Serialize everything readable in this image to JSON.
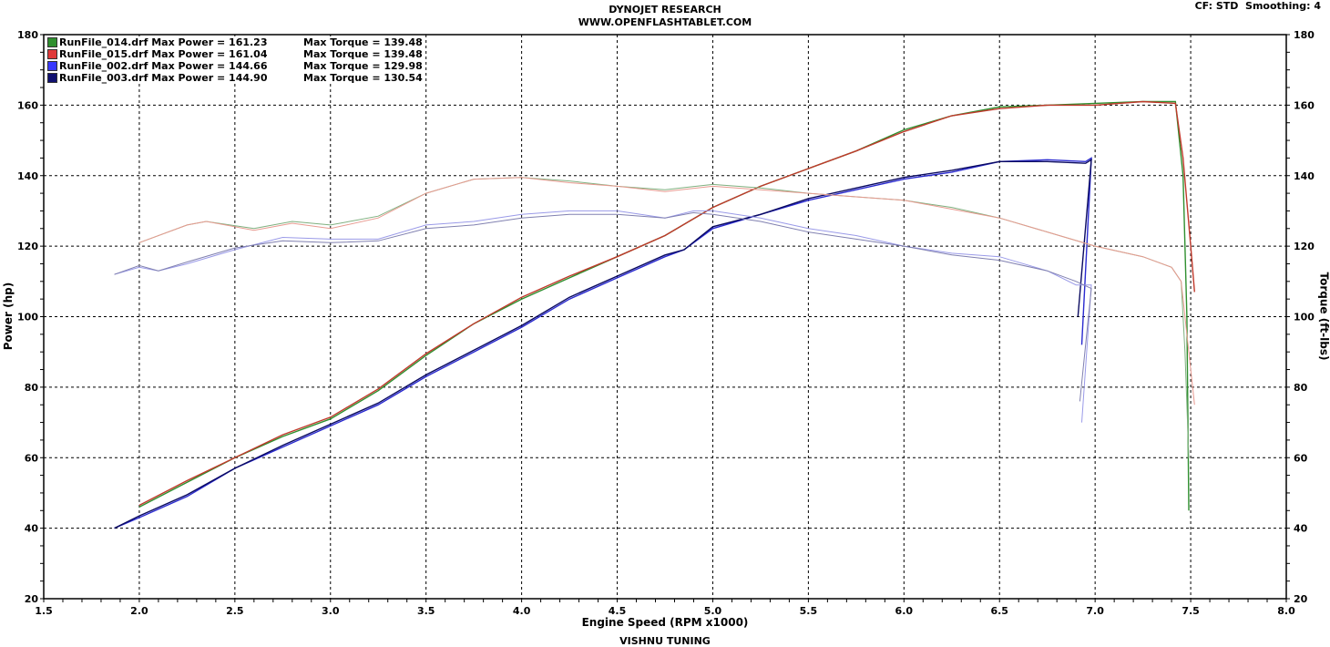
{
  "header": {
    "title": "DYNOJET RESEARCH",
    "subtitle": "WWW.OPENFLASHTABLET.COM",
    "cf": "CF: STD  Smoothing: 4"
  },
  "footer": "VISHNU TUNING",
  "chart_data": {
    "type": "line",
    "xlabel": "Engine Speed (RPM x1000)",
    "ylabel": "Power (hp)",
    "y2label": "Torque (ft-lbs)",
    "xlim": [
      1.5,
      8.0
    ],
    "ylim": [
      20,
      180
    ],
    "y2lim": [
      20,
      180
    ],
    "xticks": [
      "1.5",
      "2.0",
      "2.5",
      "3.0",
      "3.5",
      "4.0",
      "4.5",
      "5.0",
      "5.5",
      "6.0",
      "6.5",
      "7.0",
      "7.5",
      "8.0"
    ],
    "yticks": [
      "20",
      "40",
      "60",
      "80",
      "100",
      "120",
      "140",
      "160",
      "180"
    ],
    "grid": true,
    "legend": "top-left",
    "legend_entries": [
      {
        "label": "RunFile_014.drf Max Power = 161.23",
        "torque": "Max Torque = 139.48",
        "color": "#2f8f2f"
      },
      {
        "label": "RunFile_015.drf Max Power = 161.04",
        "torque": "Max Torque = 139.48",
        "color": "#e03a3a"
      },
      {
        "label": "RunFile_002.drf Max Power = 144.66",
        "torque": "Max Torque = 129.98",
        "color": "#3a3aff"
      },
      {
        "label": "RunFile_003.drf Max Power = 144.90",
        "torque": "Max Torque = 130.54",
        "color": "#101070"
      }
    ],
    "series": [
      {
        "name": "RunFile_014.drf",
        "kind": "power",
        "color": "#2f8f2f",
        "x": [
          2.0,
          2.25,
          2.5,
          2.75,
          3.0,
          3.25,
          3.5,
          3.75,
          4.0,
          4.25,
          4.5,
          4.75,
          5.0,
          5.25,
          5.5,
          5.75,
          6.0,
          6.25,
          6.5,
          6.75,
          7.0,
          7.25,
          7.42,
          7.46,
          7.48,
          7.49
        ],
        "y": [
          46,
          53,
          60,
          66,
          71,
          79,
          89,
          98,
          105,
          111,
          117,
          123,
          131,
          137,
          142,
          147,
          153,
          157,
          159.5,
          160,
          160.5,
          161,
          161,
          140,
          100,
          45
        ]
      },
      {
        "name": "RunFile_015.drf",
        "kind": "power",
        "color": "#c0392b",
        "x": [
          2.0,
          2.25,
          2.5,
          2.75,
          3.0,
          3.25,
          3.5,
          3.75,
          4.0,
          4.25,
          4.5,
          4.75,
          5.0,
          5.25,
          5.5,
          5.75,
          6.0,
          6.25,
          6.5,
          6.75,
          7.0,
          7.25,
          7.42,
          7.46,
          7.5,
          7.52
        ],
        "y": [
          46.5,
          53.5,
          60,
          66.5,
          71.5,
          79.5,
          89.5,
          98,
          105.5,
          111.5,
          117,
          123,
          131,
          137,
          142,
          147,
          152.5,
          157,
          159,
          160,
          160,
          161,
          160.5,
          145,
          120,
          107
        ]
      },
      {
        "name": "RunFile_002.drf",
        "kind": "power",
        "color": "#2a2ad0",
        "x": [
          1.87,
          2.0,
          2.25,
          2.5,
          2.75,
          3.0,
          3.25,
          3.5,
          3.75,
          4.0,
          4.25,
          4.5,
          4.75,
          4.85,
          5.0,
          5.25,
          5.5,
          5.75,
          6.0,
          6.25,
          6.5,
          6.75,
          6.95,
          6.98,
          6.93
        ],
        "y": [
          40,
          43,
          49,
          57,
          63,
          69,
          75,
          83,
          90,
          97,
          105,
          111,
          117,
          119,
          125,
          129,
          133,
          136,
          139,
          141,
          144,
          144.5,
          144,
          145,
          92
        ]
      },
      {
        "name": "RunFile_003.drf",
        "kind": "power",
        "color": "#0a0a60",
        "x": [
          1.87,
          2.0,
          2.25,
          2.5,
          2.75,
          3.0,
          3.25,
          3.5,
          3.75,
          4.0,
          4.25,
          4.5,
          4.75,
          4.85,
          5.0,
          5.25,
          5.5,
          5.75,
          6.0,
          6.25,
          6.5,
          6.75,
          6.95,
          6.98,
          6.91
        ],
        "y": [
          40,
          43.5,
          49.5,
          57,
          63.5,
          69.5,
          75.5,
          83.5,
          90.5,
          97.5,
          105.5,
          111.5,
          117.5,
          119,
          125.5,
          129,
          133.5,
          136.5,
          139.5,
          141.5,
          144,
          144,
          143.5,
          144.5,
          100
        ]
      },
      {
        "name": "RunFile_014.drf",
        "kind": "torque",
        "color": "#7fb07f",
        "x": [
          2.0,
          2.25,
          2.35,
          2.6,
          2.8,
          3.0,
          3.25,
          3.5,
          3.75,
          4.0,
          4.25,
          4.5,
          4.75,
          5.0,
          5.25,
          5.5,
          5.75,
          6.0,
          6.25,
          6.5,
          6.75,
          7.0,
          7.25,
          7.4,
          7.45,
          7.47,
          7.49
        ],
        "y": [
          121,
          126,
          127,
          125,
          127,
          126,
          128.5,
          135,
          139,
          139.5,
          138.5,
          137,
          136,
          137.5,
          136.5,
          135,
          134,
          133,
          131,
          128,
          124,
          120,
          117,
          114,
          110,
          90,
          60
        ]
      },
      {
        "name": "RunFile_015.drf",
        "kind": "torque",
        "color": "#e89a90",
        "x": [
          2.0,
          2.25,
          2.35,
          2.6,
          2.8,
          3.0,
          3.25,
          3.5,
          3.75,
          4.0,
          4.25,
          4.5,
          4.75,
          5.0,
          5.25,
          5.5,
          5.75,
          6.0,
          6.25,
          6.5,
          6.75,
          7.0,
          7.25,
          7.4,
          7.45,
          7.48,
          7.52
        ],
        "y": [
          121,
          126,
          127,
          124.5,
          126.5,
          125,
          128,
          135,
          139,
          139.5,
          138,
          137,
          135.5,
          137,
          136,
          135,
          134,
          133,
          130.5,
          128,
          124,
          120,
          117,
          114,
          110,
          95,
          75
        ]
      },
      {
        "name": "RunFile_002.drf",
        "kind": "torque",
        "color": "#9a9ae8",
        "x": [
          1.87,
          2.0,
          2.1,
          2.25,
          2.5,
          2.75,
          3.0,
          3.25,
          3.5,
          3.75,
          4.0,
          4.25,
          4.5,
          4.75,
          4.9,
          5.0,
          5.25,
          5.5,
          5.75,
          6.0,
          6.25,
          6.5,
          6.75,
          6.9,
          6.98,
          6.93
        ],
        "y": [
          112,
          114,
          113,
          115,
          119,
          122.5,
          122,
          122,
          126,
          127,
          129,
          130,
          130,
          128,
          130,
          130,
          128,
          125,
          123,
          120,
          118,
          117,
          113,
          109,
          109,
          70
        ]
      },
      {
        "name": "RunFile_003.drf",
        "kind": "torque",
        "color": "#8080b0",
        "x": [
          1.87,
          2.0,
          2.1,
          2.25,
          2.5,
          2.75,
          3.0,
          3.25,
          3.5,
          3.75,
          4.0,
          4.25,
          4.5,
          4.75,
          4.9,
          5.0,
          5.25,
          5.5,
          5.75,
          6.0,
          6.25,
          6.5,
          6.75,
          6.9,
          6.98,
          6.92
        ],
        "y": [
          112,
          114.5,
          113,
          115.5,
          119.5,
          121.5,
          121,
          121.5,
          125,
          126,
          128,
          129,
          129,
          128,
          129.5,
          129,
          127,
          124,
          122,
          120,
          117.5,
          116,
          113,
          110,
          108,
          76
        ]
      }
    ]
  }
}
